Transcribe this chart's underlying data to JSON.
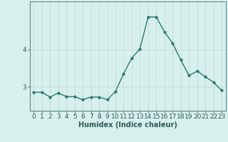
{
  "x": [
    0,
    1,
    2,
    3,
    4,
    5,
    6,
    7,
    8,
    9,
    10,
    11,
    12,
    13,
    14,
    15,
    16,
    17,
    18,
    19,
    20,
    21,
    22,
    23
  ],
  "y": [
    2.85,
    2.85,
    2.72,
    2.83,
    2.73,
    2.73,
    2.65,
    2.72,
    2.72,
    2.65,
    2.87,
    3.35,
    3.77,
    4.02,
    4.88,
    4.88,
    4.48,
    4.17,
    3.72,
    3.3,
    3.42,
    3.27,
    3.12,
    2.9
  ],
  "line_color": "#2a7a6f",
  "marker_color": "#2a7a6f",
  "bg_color": "#d8f0ed",
  "grid_color": "#c4deda",
  "xlabel": "Humidex (Indice chaleur)",
  "ytick_labels": [
    "3",
    "4"
  ],
  "ytick_values": [
    3,
    4
  ],
  "ylim": [
    2.35,
    5.3
  ],
  "xlim": [
    -0.5,
    23.5
  ],
  "xlabel_fontsize": 7,
  "tick_fontsize": 6.5,
  "line_width": 1.0,
  "marker_size": 2.5
}
